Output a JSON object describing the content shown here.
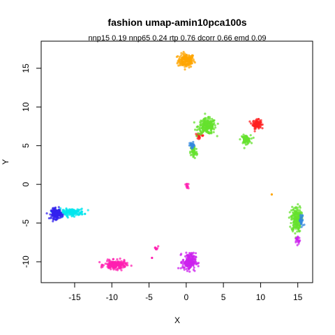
{
  "chart_data": {
    "type": "scatter",
    "title": "fashion umap-amin10pca100s",
    "subtitle": "nnp15 0.19 nnp65 0.24 rtp 0.76 dcorr 0.66 emd 0.09",
    "xlabel": "X",
    "ylabel": "Y",
    "xlim": [
      -19.5,
      17.0
    ],
    "ylim": [
      -12.7,
      18.5
    ],
    "xticks": [
      -15,
      -10,
      -5,
      0,
      5,
      10,
      15
    ],
    "yticks": [
      -10,
      -5,
      0,
      5,
      10,
      15
    ],
    "xtick_labels": [
      "-15",
      "-10",
      "-5",
      "0",
      "5",
      "10",
      "15"
    ],
    "ytick_labels": [
      "-10",
      "-5",
      "0",
      "5",
      "10",
      "15"
    ],
    "grid": false,
    "legend": "none",
    "series": [
      {
        "color": "#ffa500",
        "clusters": [
          {
            "cx": 0.0,
            "cy": 16.0,
            "sx": 1.0,
            "sy": 0.8,
            "n": 160
          }
        ]
      },
      {
        "color": "#ff2020",
        "clusters": [
          {
            "cx": 9.5,
            "cy": 7.8,
            "sx": 0.5,
            "sy": 0.5,
            "n": 110
          },
          {
            "cx": 1.8,
            "cy": 6.3,
            "sx": 0.5,
            "sy": 0.3,
            "n": 25
          }
        ]
      },
      {
        "color": "#66e22e",
        "clusters": [
          {
            "cx": 2.8,
            "cy": 7.5,
            "sx": 1.1,
            "sy": 0.9,
            "n": 220
          },
          {
            "cx": 8.0,
            "cy": 5.8,
            "sx": 0.6,
            "sy": 0.5,
            "n": 70
          },
          {
            "cx": 1.0,
            "cy": 4.2,
            "sx": 0.4,
            "sy": 0.8,
            "n": 60
          },
          {
            "cx": 14.8,
            "cy": -4.5,
            "sx": 0.6,
            "sy": 1.5,
            "n": 200
          }
        ]
      },
      {
        "color": "#3388dd",
        "clusters": [
          {
            "cx": 0.8,
            "cy": 5.0,
            "sx": 0.3,
            "sy": 0.4,
            "n": 30
          },
          {
            "cx": 15.5,
            "cy": -4.8,
            "sx": 0.3,
            "sy": 0.8,
            "n": 25
          }
        ]
      },
      {
        "color": "#00e5ee",
        "clusters": [
          {
            "cx": -15.5,
            "cy": -3.6,
            "sx": 1.6,
            "sy": 0.4,
            "n": 160
          }
        ]
      },
      {
        "color": "#3322ee",
        "clusters": [
          {
            "cx": -17.5,
            "cy": -3.8,
            "sx": 0.6,
            "sy": 0.6,
            "n": 170
          }
        ]
      },
      {
        "color": "#ff1fb0",
        "clusters": [
          {
            "cx": -9.5,
            "cy": -10.4,
            "sx": 1.3,
            "sy": 0.5,
            "n": 200
          },
          {
            "cx": 0.1,
            "cy": -0.2,
            "sx": 0.2,
            "sy": 0.3,
            "n": 12
          },
          {
            "cx": -4.0,
            "cy": -8.2,
            "sx": 0.2,
            "sy": 0.3,
            "n": 10
          }
        ]
      },
      {
        "color": "#cc22ee",
        "clusters": [
          {
            "cx": 0.4,
            "cy": -10.0,
            "sx": 0.8,
            "sy": 1.0,
            "n": 190
          },
          {
            "cx": 15.0,
            "cy": -7.2,
            "sx": 0.3,
            "sy": 0.5,
            "n": 20
          }
        ]
      }
    ],
    "outliers": [
      {
        "x": 11.5,
        "y": -1.3,
        "color": "#ffa500"
      },
      {
        "x": -4.6,
        "y": -9.5,
        "color": "#ff1fb0"
      }
    ]
  }
}
